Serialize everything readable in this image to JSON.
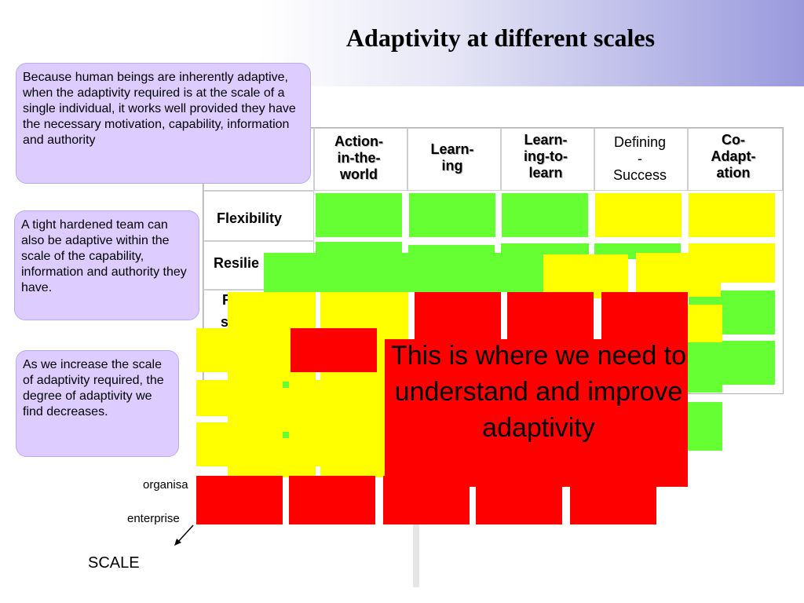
{
  "title": "Adaptivity at different scales",
  "table": {
    "headers": [
      "Action-in-the-world",
      "Learn-ing",
      "Learn-ing-to-learn",
      "Defining-Success",
      "Co-Adapt-ation"
    ],
    "header_lines": [
      [
        "Action-",
        "in-the-",
        "world"
      ],
      [
        "Learn-",
        "ing"
      ],
      [
        "Learn-",
        "ing-to-",
        "learn"
      ],
      [
        "Defining",
        "-",
        "Success"
      ],
      [
        "Co-",
        "Adapt-",
        "ation"
      ]
    ],
    "rows": [
      "Flexibility",
      "Resilie",
      "R",
      "s"
    ]
  },
  "notes": {
    "individual": "Because human beings are inherently adaptive, when the adaptivity required is at the scale of a single individual, it works well provided they have the necessary motivation, capability, information and authority",
    "team": "A tight hardened team can also be adaptive within the scale of the capability, information and authority they have.",
    "scale": "As we increase the scale of adaptivity required, the degree of adaptivity we find decreases."
  },
  "scale_labels": {
    "organisation": "organisa",
    "enterprise": "enterprise",
    "axis": "SCALE"
  },
  "callout": "This is where we need to understand and improve adaptivity",
  "colors": {
    "green": "#66ff33",
    "yellow": "#ffff00",
    "red": "#ff0000",
    "note_bg": "#ddccff",
    "banner": "#9999dd"
  }
}
